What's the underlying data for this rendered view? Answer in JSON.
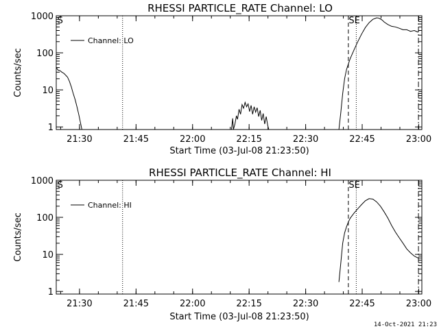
{
  "footer_timestamp": "14-Oct-2021 21:23",
  "chart_data": [
    {
      "type": "line",
      "title": "RHESSI PARTICLE_RATE Channel: LO",
      "xlabel": "Start Time (03-Jul-08 21:23:50)",
      "ylabel": "Counts/sec",
      "x_unit": "minutes since 21:23:50",
      "xlim": [
        0,
        97
      ],
      "ylim": [
        0.85,
        1000
      ],
      "y_scale": "log",
      "x_ticks": [
        {
          "label": "21:30",
          "x": 6.17
        },
        {
          "label": "21:45",
          "x": 21.17
        },
        {
          "label": "22:00",
          "x": 36.17
        },
        {
          "label": "22:15",
          "x": 51.17
        },
        {
          "label": "22:30",
          "x": 66.17
        },
        {
          "label": "22:45",
          "x": 81.17
        },
        {
          "label": "23:00",
          "x": 96.17
        }
      ],
      "y_ticks": [
        {
          "label": "1",
          "y": 1
        },
        {
          "label": "10",
          "y": 10
        },
        {
          "label": "100",
          "y": 100
        },
        {
          "label": "1000",
          "y": 1000
        }
      ],
      "markers": [
        {
          "type": "dotted",
          "x": 17.6,
          "label": ""
        },
        {
          "type": "dashed",
          "x": 77.5,
          "label": ""
        },
        {
          "type": "dotted",
          "x": 79.6,
          "label": ""
        },
        {
          "type": "dash-dot",
          "x": 96.1,
          "label": ""
        }
      ],
      "corner_labels": [
        {
          "text": "S",
          "x": 0.3
        },
        {
          "text": "SE",
          "x": 77.6
        }
      ],
      "legend": {
        "position": "top-left",
        "entries": [
          "Channel: LO"
        ]
      },
      "segments": [
        {
          "x": [
            0,
            0.5,
            1,
            1.5,
            2,
            2.5,
            3,
            3.5,
            4,
            4.5,
            5,
            5.5,
            6,
            6.5,
            6.8
          ],
          "y": [
            40,
            34,
            33,
            30,
            28,
            25,
            22,
            17,
            12,
            8,
            5.5,
            3.5,
            2.1,
            1.2,
            0.85
          ]
        },
        {
          "x": [
            46.5,
            46.8,
            47.0,
            47.4,
            47.8,
            48.1,
            48.5,
            48.9,
            49.3,
            49.7,
            50.1,
            50.5,
            50.9,
            51.3,
            51.7,
            52.1,
            52.5,
            52.9,
            53.3,
            53.7,
            54.1,
            54.5,
            54.9,
            55.3,
            55.7,
            56.1,
            56.4
          ],
          "y": [
            0.85,
            1.7,
            0.85,
            1.2,
            2.0,
            1.6,
            3.0,
            2.2,
            4.0,
            3.2,
            4.6,
            3.5,
            4.2,
            2.6,
            3.8,
            2.2,
            3.5,
            2.5,
            3.3,
            1.9,
            2.8,
            1.5,
            2.3,
            1.2,
            1.9,
            1.1,
            0.85
          ]
        },
        {
          "x": [
            75.0,
            75.5,
            76.0,
            76.5,
            77.0,
            77.5,
            78,
            79,
            80,
            81,
            82,
            83,
            84,
            85,
            85.5,
            86,
            86.5,
            87,
            88,
            89,
            90,
            91,
            92,
            93,
            94,
            95,
            96
          ],
          "y": [
            0.85,
            2.5,
            8,
            20,
            35,
            50,
            70,
            120,
            200,
            320,
            480,
            650,
            800,
            880,
            870,
            820,
            760,
            680,
            580,
            520,
            500,
            460,
            420,
            420,
            380,
            400,
            360
          ]
        }
      ]
    },
    {
      "type": "line",
      "title": "RHESSI PARTICLE_RATE Channel: HI",
      "xlabel": "Start Time (03-Jul-08 21:23:50)",
      "ylabel": "Counts/sec",
      "x_unit": "minutes since 21:23:50",
      "xlim": [
        0,
        97
      ],
      "ylim": [
        0.85,
        1000
      ],
      "y_scale": "log",
      "x_ticks": [
        {
          "label": "21:30",
          "x": 6.17
        },
        {
          "label": "21:45",
          "x": 21.17
        },
        {
          "label": "22:00",
          "x": 36.17
        },
        {
          "label": "22:15",
          "x": 51.17
        },
        {
          "label": "22:30",
          "x": 66.17
        },
        {
          "label": "22:45",
          "x": 81.17
        },
        {
          "label": "23:00",
          "x": 96.17
        }
      ],
      "y_ticks": [
        {
          "label": "1",
          "y": 1
        },
        {
          "label": "10",
          "y": 10
        },
        {
          "label": "100",
          "y": 100
        },
        {
          "label": "1000",
          "y": 1000
        }
      ],
      "markers": [
        {
          "type": "dotted",
          "x": 17.6,
          "label": ""
        },
        {
          "type": "dashed",
          "x": 77.5,
          "label": ""
        },
        {
          "type": "dotted",
          "x": 79.6,
          "label": ""
        },
        {
          "type": "dash-dot",
          "x": 96.1,
          "label": ""
        }
      ],
      "corner_labels": [
        {
          "text": "S",
          "x": 0.3
        },
        {
          "text": "SE",
          "x": 77.6
        }
      ],
      "legend": {
        "position": "top-left",
        "entries": [
          "Channel: HI"
        ]
      },
      "segments": [
        {
          "x": [
            75.0,
            75.5,
            76.0,
            76.5,
            77.0,
            77.5,
            78,
            79,
            80,
            81,
            82,
            83,
            84,
            85,
            86,
            87,
            88,
            89,
            90,
            91,
            92,
            93,
            94,
            95,
            96
          ],
          "y": [
            1.8,
            6,
            20,
            38,
            55,
            75,
            95,
            130,
            170,
            220,
            280,
            320,
            310,
            260,
            200,
            140,
            95,
            60,
            40,
            28,
            20,
            14,
            11,
            9,
            8
          ]
        }
      ]
    }
  ]
}
